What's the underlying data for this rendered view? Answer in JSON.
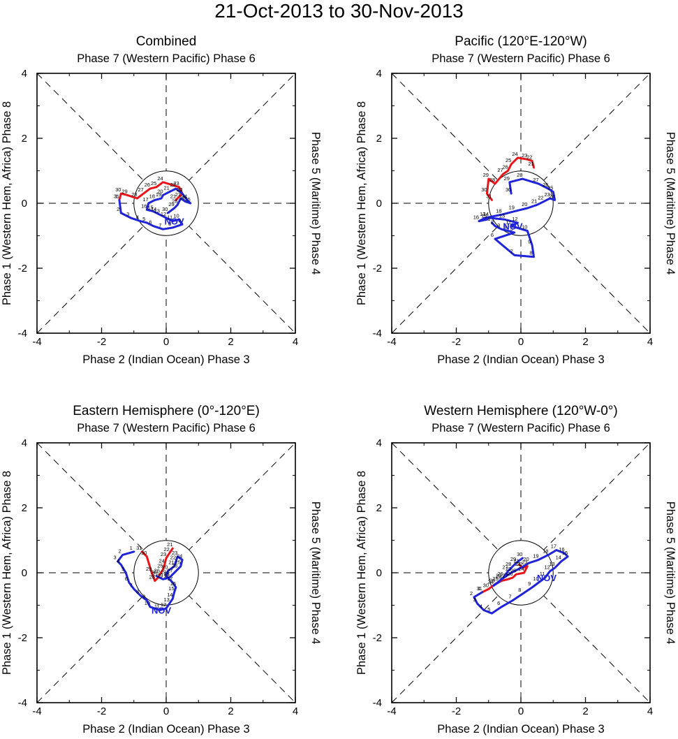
{
  "title": "21-Oct-2013 to 30-Nov-2013",
  "axis_labels": {
    "top": "Phase 7 (Western Pacific) Phase 6",
    "bottom": "Phase 2 (Indian Ocean) Phase 3",
    "left": "Phase 1 (Western Hem, Africa) Phase 8",
    "right": "Phase 5 (Maritime) Phase 4"
  },
  "colors": {
    "october": "#e8141a",
    "november": "#1f24d8",
    "guides": "#000000"
  },
  "chart_data": [
    {
      "type": "line",
      "title": "Combined",
      "xlim": [
        -4,
        4
      ],
      "ylim": [
        -4,
        4
      ],
      "xticks": [
        "-4",
        "-2",
        "0",
        "2",
        "4"
      ],
      "yticks": [
        "-4",
        "-2",
        "0",
        "2",
        "4"
      ],
      "month_label": "NOV",
      "series": [
        {
          "name": "October",
          "day_labels": [
            "21",
            "22",
            "23",
            "24",
            "25",
            "26",
            "27",
            "28",
            "29",
            "30",
            "31"
          ],
          "x": [
            0.3,
            0.5,
            0.4,
            -0.1,
            -0.3,
            -0.5,
            -0.7,
            -0.9,
            -1.2,
            -1.4,
            -1.45
          ],
          "y": [
            0.1,
            0.3,
            0.5,
            0.65,
            0.5,
            0.45,
            0.3,
            0.15,
            0.25,
            0.3,
            0.1
          ]
        },
        {
          "name": "November",
          "day_labels": [
            "1",
            "2",
            "3",
            "4",
            "5",
            "6",
            "7",
            "8",
            "9",
            "10",
            "11",
            "12",
            "13",
            "14",
            "15",
            "16",
            "17",
            "18",
            "19",
            "20",
            "21",
            "22",
            "23",
            "24",
            "25",
            "26",
            "27",
            "28",
            "29",
            "30"
          ],
          "x": [
            -1.45,
            -1.4,
            -1.1,
            -0.8,
            -0.6,
            -0.4,
            -0.1,
            0.2,
            0.5,
            0.4,
            0.2,
            0.0,
            -0.2,
            -0.3,
            -0.4,
            -0.6,
            -0.55,
            -0.35,
            -0.15,
            -0.1,
            0.1,
            0.3,
            0.5,
            0.65,
            0.75,
            0.6,
            0.45,
            0.35,
            0.25,
            0.05
          ],
          "y": [
            0.1,
            -0.3,
            -0.45,
            -0.55,
            -0.6,
            -0.7,
            -0.8,
            -0.75,
            -0.65,
            -0.5,
            -0.55,
            -0.45,
            -0.35,
            -0.3,
            -0.25,
            -0.2,
            0.0,
            0.1,
            0.15,
            0.25,
            0.35,
            0.45,
            0.3,
            0.1,
            0.0,
            0.05,
            0.15,
            -0.05,
            -0.15,
            -0.3
          ]
        }
      ]
    },
    {
      "type": "line",
      "title": "Pacific (120°E-120°W)",
      "xlim": [
        -4,
        4
      ],
      "ylim": [
        -4,
        4
      ],
      "xticks": [
        "-4",
        "-2",
        "0",
        "2",
        "4"
      ],
      "yticks": [
        "-4",
        "-2",
        "0",
        "2",
        "4"
      ],
      "month_label": "NOV",
      "series": [
        {
          "name": "October",
          "day_labels": [
            "21",
            "22",
            "23",
            "24",
            "25",
            "26",
            "27",
            "28",
            "29",
            "30",
            "31"
          ],
          "x": [
            0.4,
            0.35,
            0.2,
            -0.1,
            -0.3,
            -0.4,
            -0.55,
            -0.8,
            -1.0,
            -1.05,
            -0.9
          ],
          "y": [
            1.1,
            1.3,
            1.35,
            1.4,
            1.2,
            1.0,
            0.9,
            0.6,
            0.75,
            0.3,
            0.1
          ]
        },
        {
          "name": "November",
          "day_labels": [
            "1",
            "2",
            "3",
            "4",
            "5",
            "6",
            "7",
            "8",
            "9",
            "10",
            "11",
            "12",
            "13",
            "14",
            "15",
            "16",
            "17",
            "18",
            "19",
            "20",
            "21",
            "22",
            "23",
            "24",
            "25",
            "26",
            "27",
            "28",
            "29",
            "30"
          ],
          "x": [
            -0.9,
            -0.8,
            -0.6,
            -0.4,
            -0.2,
            -0.8,
            -0.2,
            0.4,
            0.35,
            0.2,
            -0.3,
            -0.1,
            -0.5,
            -1.0,
            -1.05,
            -1.3,
            -1.1,
            -0.6,
            -0.2,
            0.2,
            0.5,
            0.7,
            0.9,
            1.05,
            1.0,
            0.85,
            0.55,
            0.05,
            -0.35,
            -0.3
          ],
          "y": [
            -0.6,
            -0.7,
            -0.8,
            -0.85,
            -0.9,
            -1.1,
            -1.6,
            -1.65,
            -1.3,
            -0.85,
            -0.7,
            -0.6,
            -0.5,
            -0.45,
            -0.5,
            -0.55,
            -0.45,
            -0.35,
            -0.25,
            -0.15,
            -0.05,
            0.05,
            0.15,
            0.1,
            0.35,
            0.45,
            0.6,
            0.75,
            0.65,
            0.3
          ]
        }
      ]
    },
    {
      "type": "line",
      "title": "Eastern Hemisphere (0°-120°E)",
      "xlim": [
        -4,
        4
      ],
      "ylim": [
        -4,
        4
      ],
      "xticks": [
        "-4",
        "-2",
        "0",
        "2",
        "4"
      ],
      "yticks": [
        "-4",
        "-2",
        "0",
        "2",
        "4"
      ],
      "month_label": "NOV",
      "series": [
        {
          "name": "October",
          "day_labels": [
            "21",
            "22",
            "23",
            "24",
            "25",
            "26",
            "27",
            "28",
            "29",
            "30",
            "31"
          ],
          "x": [
            0.2,
            0.1,
            0.0,
            -0.05,
            -0.1,
            -0.2,
            -0.25,
            -0.35,
            -0.45,
            -0.6,
            -0.75
          ],
          "y": [
            0.75,
            0.6,
            0.45,
            0.25,
            0.1,
            -0.05,
            -0.15,
            -0.25,
            0.0,
            0.5,
            0.65
          ]
        },
        {
          "name": "November",
          "day_labels": [
            "1",
            "2",
            "3",
            "4",
            "5",
            "6",
            "7",
            "8",
            "9",
            "10",
            "11",
            "12",
            "13",
            "14",
            "15",
            "16",
            "17",
            "18",
            "19",
            "20",
            "21",
            "22",
            "23",
            "24",
            "25",
            "26",
            "27",
            "28",
            "29",
            "30"
          ],
          "x": [
            -1.0,
            -1.35,
            -1.5,
            -1.4,
            -1.25,
            -1.15,
            -1.0,
            -0.8,
            -0.6,
            -0.5,
            -0.2,
            0.0,
            0.1,
            0.2,
            0.25,
            0.3,
            0.2,
            0.1,
            0.0,
            0.05,
            0.25,
            0.3,
            0.35,
            0.5,
            0.45,
            0.35,
            0.2,
            0.1,
            -0.1,
            -0.3
          ],
          "y": [
            0.65,
            0.55,
            0.35,
            0.25,
            0.0,
            -0.3,
            -0.5,
            -0.7,
            -0.85,
            -1.05,
            -1.15,
            -1.1,
            -0.95,
            -0.8,
            -0.6,
            -0.45,
            -0.3,
            -0.2,
            -0.1,
            0.05,
            0.2,
            0.35,
            0.5,
            0.4,
            0.2,
            0.1,
            -0.05,
            -0.15,
            -0.2,
            -0.1
          ]
        }
      ]
    },
    {
      "type": "line",
      "title": "Western Hemisphere (120°W-0°)",
      "xlim": [
        -4,
        4
      ],
      "ylim": [
        -4,
        4
      ],
      "xticks": [
        "-4",
        "-2",
        "0",
        "2",
        "4"
      ],
      "yticks": [
        "-4",
        "-2",
        "0",
        "2",
        "4"
      ],
      "month_label": "NOV",
      "series": [
        {
          "name": "October",
          "day_labels": [
            "21",
            "22",
            "23",
            "24",
            "25",
            "26",
            "27",
            "28",
            "29",
            "30",
            "31"
          ],
          "x": [
            -0.05,
            0.05,
            0.2,
            0.1,
            -0.15,
            -0.25,
            -0.4,
            -0.6,
            -0.8,
            -1.0,
            -1.2
          ],
          "y": [
            0.25,
            0.15,
            0.2,
            0.0,
            -0.05,
            -0.15,
            -0.2,
            -0.25,
            -0.35,
            -0.5,
            -0.6
          ]
        },
        {
          "name": "November",
          "day_labels": [
            "1",
            "2",
            "3",
            "4",
            "5",
            "6",
            "7",
            "8",
            "9",
            "10",
            "11",
            "12",
            "13",
            "14",
            "15",
            "16",
            "17",
            "18",
            "19",
            "20",
            "21",
            "22",
            "23",
            "24",
            "25",
            "26",
            "27",
            "28",
            "29",
            "30"
          ],
          "x": [
            -1.2,
            -1.45,
            -1.35,
            -1.15,
            -0.9,
            -0.6,
            -0.25,
            0.05,
            0.35,
            0.55,
            0.75,
            0.9,
            1.05,
            1.25,
            1.45,
            1.35,
            1.1,
            0.85,
            0.55,
            0.25,
            0.0,
            -0.3,
            -0.6,
            -0.85,
            -0.7,
            -0.55,
            -0.4,
            -0.3,
            -0.15,
            0.05
          ],
          "y": [
            -0.6,
            -0.75,
            -0.95,
            -1.15,
            -1.25,
            -1.05,
            -0.85,
            -0.65,
            -0.45,
            -0.3,
            -0.15,
            0.05,
            0.15,
            0.35,
            0.5,
            0.6,
            0.7,
            0.55,
            0.4,
            0.3,
            0.15,
            0.0,
            -0.2,
            -0.4,
            -0.3,
            -0.15,
            0.05,
            0.15,
            0.3,
            0.45
          ]
        }
      ]
    }
  ]
}
